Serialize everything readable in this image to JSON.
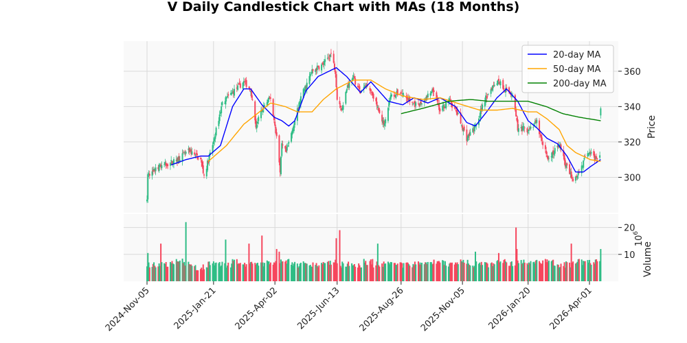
{
  "chart_data": {
    "type": "candlestick",
    "title": "V Daily Candlestick Chart with MAs (18 Months)",
    "price_panel": {
      "ylabel": "Price",
      "ylim": [
        280,
        377
      ],
      "yticks": [
        300,
        320,
        340,
        360
      ],
      "grid": true
    },
    "volume_panel": {
      "ylabel": "Volume",
      "yunit": "10",
      "yunit_exp": "6",
      "ylim": [
        0,
        25
      ],
      "yticks": [
        10,
        20
      ],
      "grid": true
    },
    "x_axis": {
      "start_date": "2024-11-05",
      "end_date": "2026-04-14",
      "xlim": [
        "2024-11-05",
        "2026-04-28"
      ],
      "ticks": [
        "2024-Nov-05",
        "2025-Jan-21",
        "2025-Apr-02",
        "2025-Jun-13",
        "2025-Aug-26",
        "2025-Nov-05",
        "2026-Jan-20",
        "2026-Apr-01"
      ],
      "tick_dates": [
        "2024-11-05",
        "2025-01-21",
        "2025-04-02",
        "2025-06-13",
        "2025-08-26",
        "2025-11-05",
        "2026-01-20",
        "2026-04-01"
      ]
    },
    "legend": {
      "position": "top-right",
      "entries": [
        {
          "label": "20-day MA",
          "color": "#0000ff"
        },
        {
          "label": "50-day MA",
          "color": "#ffa500"
        },
        {
          "label": "200-day MA",
          "color": "#008000"
        }
      ]
    },
    "colors": {
      "up": "#2ebd85",
      "down": "#f6465d",
      "background": "#f9f9f9",
      "grid": "#d9d9d9"
    },
    "close_anchors": [
      [
        "2024-11-05",
        289
      ],
      [
        "2024-11-06",
        301
      ],
      [
        "2024-11-20",
        306
      ],
      [
        "2024-12-06",
        309
      ],
      [
        "2024-12-24",
        315
      ],
      [
        "2025-01-06",
        310
      ],
      [
        "2025-01-10",
        301
      ],
      [
        "2025-01-21",
        320
      ],
      [
        "2025-01-31",
        342
      ],
      [
        "2025-02-14",
        349
      ],
      [
        "2025-02-25",
        354
      ],
      [
        "2025-03-05",
        350
      ],
      [
        "2025-03-11",
        329
      ],
      [
        "2025-03-20",
        340
      ],
      [
        "2025-03-28",
        345
      ],
      [
        "2025-04-04",
        323
      ],
      [
        "2025-04-08",
        302
      ],
      [
        "2025-04-10",
        318
      ],
      [
        "2025-04-15",
        314
      ],
      [
        "2025-04-25",
        332
      ],
      [
        "2025-05-02",
        345
      ],
      [
        "2025-05-15",
        360
      ],
      [
        "2025-05-28",
        364
      ],
      [
        "2025-06-06",
        370
      ],
      [
        "2025-06-11",
        360
      ],
      [
        "2025-06-13",
        345
      ],
      [
        "2025-06-18",
        338
      ],
      [
        "2025-06-25",
        352
      ],
      [
        "2025-07-02",
        356
      ],
      [
        "2025-07-10",
        348
      ],
      [
        "2025-07-18",
        353
      ],
      [
        "2025-07-25",
        346
      ],
      [
        "2025-08-01",
        336
      ],
      [
        "2025-08-06",
        330
      ],
      [
        "2025-08-14",
        346
      ],
      [
        "2025-08-26",
        348
      ],
      [
        "2025-09-05",
        343
      ],
      [
        "2025-09-15",
        340
      ],
      [
        "2025-09-26",
        346
      ],
      [
        "2025-10-03",
        349
      ],
      [
        "2025-10-10",
        337
      ],
      [
        "2025-10-20",
        344
      ],
      [
        "2025-10-30",
        336
      ],
      [
        "2025-11-10",
        322
      ],
      [
        "2025-11-20",
        329
      ],
      [
        "2025-12-01",
        344
      ],
      [
        "2025-12-10",
        352
      ],
      [
        "2025-12-16",
        355
      ],
      [
        "2025-12-26",
        349
      ],
      [
        "2026-01-02",
        347
      ],
      [
        "2026-01-08",
        328
      ],
      [
        "2026-01-20",
        327
      ],
      [
        "2026-01-30",
        331
      ],
      [
        "2026-02-06",
        318
      ],
      [
        "2026-02-13",
        310
      ],
      [
        "2026-02-25",
        319
      ],
      [
        "2026-03-05",
        306
      ],
      [
        "2026-03-13",
        299
      ],
      [
        "2026-03-20",
        303
      ],
      [
        "2026-03-31",
        315
      ],
      [
        "2026-04-08",
        310
      ],
      [
        "2026-04-13",
        312
      ],
      [
        "2026-04-14",
        339
      ]
    ],
    "ma_anchors": {
      "ma20": [
        [
          "2024-12-03",
          307
        ],
        [
          "2024-12-20",
          310
        ],
        [
          "2025-01-06",
          312
        ],
        [
          "2025-01-15",
          312
        ],
        [
          "2025-01-29",
          318
        ],
        [
          "2025-02-12",
          340
        ],
        [
          "2025-02-25",
          350
        ],
        [
          "2025-03-05",
          350
        ],
        [
          "2025-03-18",
          341
        ],
        [
          "2025-04-01",
          334
        ],
        [
          "2025-04-10",
          332
        ],
        [
          "2025-04-18",
          329
        ],
        [
          "2025-04-25",
          332
        ],
        [
          "2025-05-08",
          349
        ],
        [
          "2025-05-22",
          357
        ],
        [
          "2025-06-12",
          362
        ],
        [
          "2025-06-24",
          357
        ],
        [
          "2025-07-10",
          348
        ],
        [
          "2025-07-22",
          354
        ],
        [
          "2025-08-11",
          343
        ],
        [
          "2025-08-28",
          341
        ],
        [
          "2025-09-10",
          345
        ],
        [
          "2025-09-26",
          342
        ],
        [
          "2025-10-10",
          345
        ],
        [
          "2025-10-28",
          340
        ],
        [
          "2025-11-10",
          331
        ],
        [
          "2025-11-20",
          329
        ],
        [
          "2025-12-03",
          337
        ],
        [
          "2025-12-15",
          345
        ],
        [
          "2025-12-26",
          350
        ],
        [
          "2026-01-08",
          343
        ],
        [
          "2026-01-20",
          332
        ],
        [
          "2026-01-30",
          328
        ],
        [
          "2026-02-11",
          322
        ],
        [
          "2026-02-23",
          319
        ],
        [
          "2026-03-06",
          312
        ],
        [
          "2026-03-16",
          303
        ],
        [
          "2026-03-25",
          303
        ],
        [
          "2026-04-02",
          306
        ],
        [
          "2026-04-14",
          310
        ]
      ],
      "ma50": [
        [
          "2025-01-15",
          309
        ],
        [
          "2025-02-05",
          318
        ],
        [
          "2025-02-25",
          330
        ],
        [
          "2025-03-10",
          335
        ],
        [
          "2025-03-28",
          342
        ],
        [
          "2025-04-14",
          340
        ],
        [
          "2025-04-28",
          337
        ],
        [
          "2025-05-15",
          337
        ],
        [
          "2025-05-28",
          344
        ],
        [
          "2025-06-12",
          350
        ],
        [
          "2025-07-02",
          355
        ],
        [
          "2025-07-22",
          355
        ],
        [
          "2025-08-08",
          350
        ],
        [
          "2025-08-28",
          346
        ],
        [
          "2025-09-20",
          344
        ],
        [
          "2025-10-10",
          345
        ],
        [
          "2025-11-05",
          341
        ],
        [
          "2025-11-25",
          338
        ],
        [
          "2025-12-15",
          338
        ],
        [
          "2026-01-02",
          339
        ],
        [
          "2026-01-20",
          337
        ],
        [
          "2026-01-30",
          337
        ],
        [
          "2026-02-11",
          333
        ],
        [
          "2026-02-25",
          327
        ],
        [
          "2026-03-06",
          318
        ],
        [
          "2026-03-16",
          314
        ],
        [
          "2026-04-02",
          310
        ],
        [
          "2026-04-14",
          309
        ]
      ],
      "ma200": [
        [
          "2025-08-26",
          336
        ],
        [
          "2025-09-20",
          339
        ],
        [
          "2025-10-20",
          343
        ],
        [
          "2025-11-15",
          344
        ],
        [
          "2025-12-05",
          343
        ],
        [
          "2025-12-25",
          343
        ],
        [
          "2026-01-20",
          343
        ],
        [
          "2026-02-10",
          340
        ],
        [
          "2026-03-01",
          336
        ],
        [
          "2026-03-20",
          334
        ],
        [
          "2026-04-14",
          332
        ]
      ]
    },
    "volume_profile": {
      "base": [
        6,
        6,
        7,
        6,
        5,
        6,
        6,
        7,
        6,
        6,
        7,
        7,
        6,
        6,
        6,
        7,
        6,
        6,
        7,
        6,
        6,
        6,
        6,
        7,
        7,
        6,
        7,
        6,
        6,
        7,
        6,
        7,
        7,
        7,
        6,
        6,
        7,
        7
      ],
      "spikes": [
        [
          "2024-11-06",
          10.5
        ],
        [
          "2024-11-21",
          14
        ],
        [
          "2024-12-20",
          22
        ],
        [
          "2025-02-04",
          15.5
        ],
        [
          "2025-03-03",
          14
        ],
        [
          "2025-03-18",
          17
        ],
        [
          "2025-04-04",
          12
        ],
        [
          "2025-04-07",
          11
        ],
        [
          "2025-06-12",
          16
        ],
        [
          "2025-06-16",
          19
        ],
        [
          "2025-07-30",
          14
        ],
        [
          "2025-11-20",
          11
        ],
        [
          "2025-12-17",
          10.5
        ],
        [
          "2026-01-06",
          20
        ],
        [
          "2026-01-07",
          12
        ],
        [
          "2026-03-11",
          14
        ],
        [
          "2026-04-14",
          12
        ]
      ]
    }
  }
}
